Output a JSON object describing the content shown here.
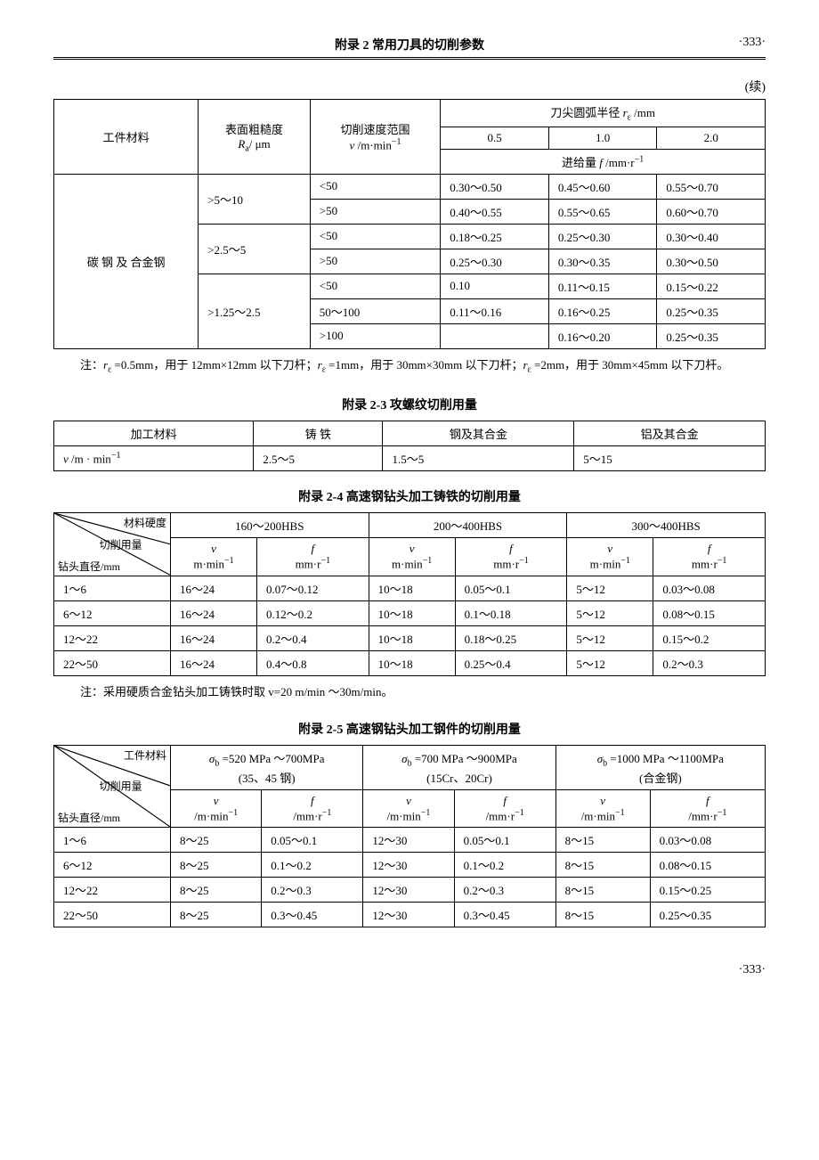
{
  "header": {
    "title": "附录 2  常用刀具的切削参数",
    "page": "·333·"
  },
  "continued": "(续)",
  "table1": {
    "h_material": "工件材料",
    "h_roughness": "表面粗糙度\nRₐ/ μm",
    "h_speed": "切削速度范围\nv /m·min⁻¹",
    "h_radius": "刀尖圆弧半径 rₑ  /mm",
    "h_r05": "0.5",
    "h_r10": "1.0",
    "h_r20": "2.0",
    "h_feed": "进给量 f /mm·r⁻¹",
    "material": "碳 钢 及 合金钢",
    "rows": [
      {
        "ra": ">5～10",
        "v": "<50",
        "c1": "0.30～0.50",
        "c2": "0.45～0.60",
        "c3": "0.55～0.70"
      },
      {
        "ra": "",
        "v": ">50",
        "c1": "0.40～0.55",
        "c2": "0.55～0.65",
        "c3": "0.60～0.70"
      },
      {
        "ra": ">2.5～5",
        "v": "<50",
        "c1": "0.18～0.25",
        "c2": "0.25～0.30",
        "c3": "0.30～0.40"
      },
      {
        "ra": "",
        "v": ">50",
        "c1": "0.25～0.30",
        "c2": "0.30～0.35",
        "c3": "0.30～0.50"
      },
      {
        "ra": ">1.25～2.5",
        "v": "<50",
        "c1": "0.10",
        "c2": "0.11～0.15",
        "c3": "0.15～0.22"
      },
      {
        "ra": "",
        "v": "50～100",
        "c1": "0.11～0.16",
        "c2": "0.16～0.25",
        "c3": "0.25～0.35"
      },
      {
        "ra": "",
        "v": ">100",
        "c1": "",
        "c2": "0.16～0.20",
        "c3": "0.25～0.35"
      }
    ],
    "note": "注：rₑ =0.5mm，用于 12mm×12mm 以下刀杆；rₑ =1mm，用于 30mm×30mm 以下刀杆；rₑ =2mm，用于 30mm×45mm 以下刀杆。"
  },
  "table2": {
    "title": "附录 2-3  攻螺纹切削用量",
    "h_material": "加工材料",
    "h_iron": "铸    铁",
    "h_steel": "钢及其合金",
    "h_al": "铝及其合金",
    "row_label": "v /m · min⁻¹",
    "iron": "2.5～5",
    "steel": "1.5～5",
    "al": "5～15"
  },
  "table3": {
    "title": "附录 2-4  高速钢钻头加工铸铁的切削用量",
    "diag_top": "材料硬度",
    "diag_mid": "切削用量",
    "diag_bot": "钻头直径/mm",
    "h1": "160～200HBS",
    "h2": "200～400HBS",
    "h3": "300～400HBS",
    "sub_v": "v\nm·min⁻¹",
    "sub_f": "f\nmm·r⁻¹",
    "rows": [
      {
        "d": "1～6",
        "v1": "16～24",
        "f1": "0.07～0.12",
        "v2": "10～18",
        "f2": "0.05～0.1",
        "v3": "5～12",
        "f3": "0.03～0.08"
      },
      {
        "d": "6～12",
        "v1": "16～24",
        "f1": "0.12～0.2",
        "v2": "10～18",
        "f2": "0.1～0.18",
        "v3": "5～12",
        "f3": "0.08～0.15"
      },
      {
        "d": "12～22",
        "v1": "16～24",
        "f1": "0.2～0.4",
        "v2": "10～18",
        "f2": "0.18～0.25",
        "v3": "5～12",
        "f3": "0.15～0.2"
      },
      {
        "d": "22～50",
        "v1": "16～24",
        "f1": "0.4～0.8",
        "v2": "10～18",
        "f2": "0.25～0.4",
        "v3": "5～12",
        "f3": "0.2～0.3"
      }
    ],
    "note": "注：采用硬质合金钻头加工铸铁时取 v=20 m/min ～30m/min。"
  },
  "table4": {
    "title": "附录 2-5  高速钢钻头加工钢件的切削用量",
    "diag_top": "工件材料",
    "diag_mid": "切削用量",
    "diag_bot": "钻头直径/mm",
    "h1": "σb =520 MPa ～700MPa\n(35、45 钢)",
    "h2": "σb =700 MPa ～900MPa\n(15Cr、20Cr)",
    "h3": "σb =1000 MPa ～1100MPa\n(合金钢)",
    "sub_v": "v\n/m·min⁻¹",
    "sub_f": "f\n/mm·r⁻¹",
    "rows": [
      {
        "d": "1～6",
        "v1": "8～25",
        "f1": "0.05～0.1",
        "v2": "12～30",
        "f2": "0.05～0.1",
        "v3": "8～15",
        "f3": "0.03～0.08"
      },
      {
        "d": "6～12",
        "v1": "8～25",
        "f1": "0.1～0.2",
        "v2": "12～30",
        "f2": "0.1～0.2",
        "v3": "8～15",
        "f3": "0.08～0.15"
      },
      {
        "d": "12～22",
        "v1": "8～25",
        "f1": "0.2～0.3",
        "v2": "12～30",
        "f2": "0.2～0.3",
        "v3": "8～15",
        "f3": "0.15～0.25"
      },
      {
        "d": "22～50",
        "v1": "8～25",
        "f1": "0.3～0.45",
        "v2": "12～30",
        "f2": "0.3～0.45",
        "v3": "8～15",
        "f3": "0.25～0.35"
      }
    ]
  },
  "footer": "·333·"
}
